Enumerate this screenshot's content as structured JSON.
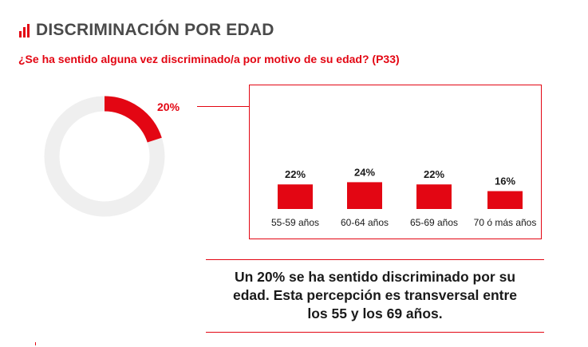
{
  "header": {
    "title": "DISCRIMINACIÓN POR EDAD",
    "question": "¿Se ha sentido alguna vez discriminado/a por motivo de su edad? (P33)"
  },
  "colors": {
    "accent": "#e30613",
    "ring_bg": "#efefef",
    "title": "#4a4a4a"
  },
  "icons": {
    "title_icon": "bar-chart-icon"
  },
  "chart_data": [
    {
      "type": "pie",
      "value_percent": 20,
      "label": "20%"
    },
    {
      "type": "bar",
      "categories": [
        "55-59 años",
        "60-64 años",
        "65-69 años",
        "70 ó más años"
      ],
      "values": [
        22,
        24,
        22,
        16
      ],
      "value_labels": [
        "22%",
        "24%",
        "22%",
        "16%"
      ],
      "ylim": [
        0,
        100
      ]
    }
  ],
  "summary": {
    "line1": "Un 20% se ha sentido discriminado por su",
    "line2": "edad. Esta percepción es transversal entre",
    "line3": "los 55 y los 69 años."
  }
}
